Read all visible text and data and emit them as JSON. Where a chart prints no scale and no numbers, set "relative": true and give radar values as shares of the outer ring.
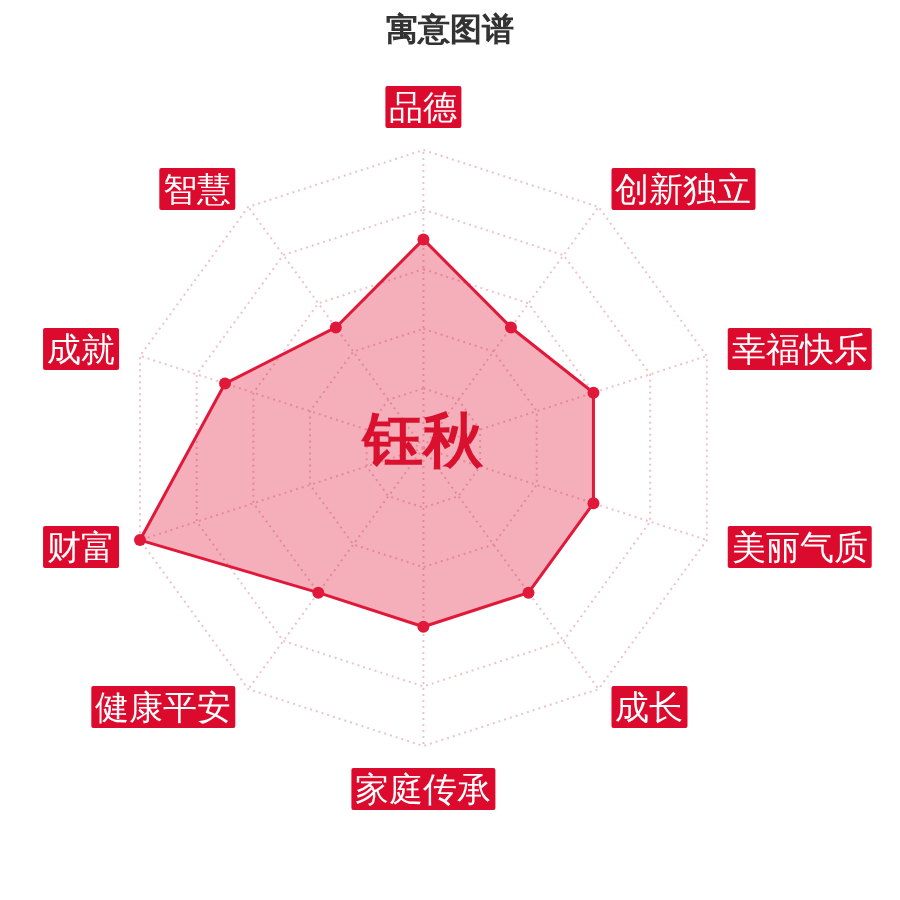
{
  "chart_data": {
    "type": "radar",
    "title": "寓意图谱",
    "categories": [
      "品德",
      "创新独立",
      "幸福快乐",
      "美丽气质",
      "成长",
      "家庭传承",
      "健康平安",
      "财富",
      "成就",
      "智慧"
    ],
    "relative": true,
    "series": [
      {
        "color": "#e0193a",
        "values": [
          0.7,
          0.5,
          0.6,
          0.6,
          0.6,
          0.6,
          0.6,
          1,
          0.7,
          0.5
        ]
      }
    ],
    "annotations": [
      "钰秋"
    ],
    "grid": true,
    "marker": "circle"
  }
}
